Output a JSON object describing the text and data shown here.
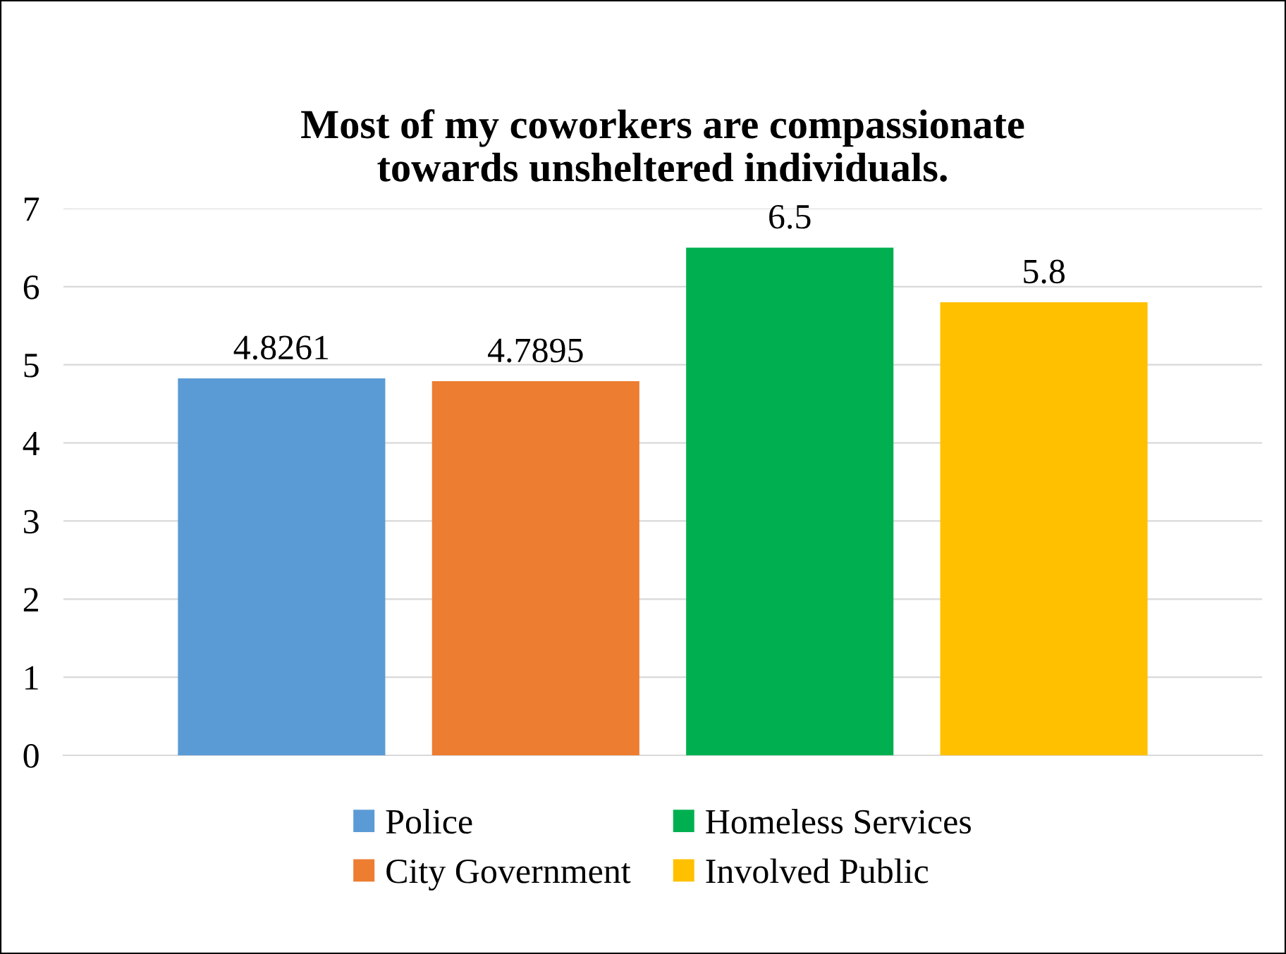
{
  "chart_data": {
    "type": "bar",
    "title": "Most of my coworkers are compassionate\ntowards unsheltered individuals.",
    "categories": [
      null
    ],
    "series": [
      {
        "name": "Police",
        "color": "#5b9bd5",
        "values": [
          4.8261
        ]
      },
      {
        "name": "City Government",
        "color": "#ed7d31",
        "values": [
          4.7895
        ]
      },
      {
        "name": "Homeless Services",
        "color": "#00b050",
        "values": [
          6.5
        ]
      },
      {
        "name": "Involved Public",
        "color": "#ffc000",
        "values": [
          5.8
        ]
      }
    ],
    "ylim": [
      0,
      7
    ],
    "yticks": [
      0,
      1,
      2,
      3,
      4,
      5,
      6,
      7
    ],
    "grid": "y",
    "legend": "bottom",
    "data_labels": true,
    "tick_labels": "y"
  }
}
